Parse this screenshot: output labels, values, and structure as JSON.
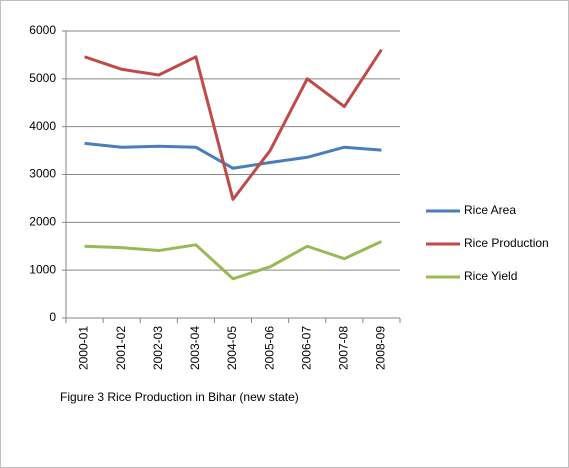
{
  "chart_data": {
    "type": "line",
    "caption": "Figure 3  Rice Production in Bihar (new state)",
    "categories": [
      "2000-01",
      "2001-02",
      "2002-03",
      "2003-04",
      "2004-05",
      "2005-06",
      "2006-07",
      "2007-08",
      "2008-09"
    ],
    "series": [
      {
        "name": "Rice Area",
        "color": "#4a7ebb",
        "values": [
          3650,
          3570,
          3590,
          3570,
          3130,
          3250,
          3360,
          3570,
          3510
        ]
      },
      {
        "name": "Rice Production",
        "color": "#be4b48",
        "values": [
          5460,
          5200,
          5080,
          5460,
          2480,
          3500,
          5000,
          4420,
          5610
        ]
      },
      {
        "name": "Rice Yield",
        "color": "#98b954",
        "values": [
          1500,
          1470,
          1410,
          1530,
          820,
          1070,
          1500,
          1240,
          1600
        ]
      }
    ],
    "ylim": [
      0,
      6000
    ],
    "yticks": [
      0,
      1000,
      2000,
      3000,
      4000,
      5000,
      6000
    ],
    "grid": true,
    "legend": "right"
  }
}
